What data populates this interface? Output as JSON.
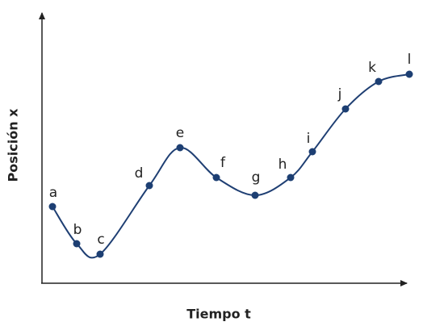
{
  "x_axis_label": "Tiempo t",
  "y_axis_label": "Posición x",
  "points": [
    {
      "label": "a"
    },
    {
      "label": "b"
    },
    {
      "label": "c"
    },
    {
      "label": "d"
    },
    {
      "label": "e"
    },
    {
      "label": "f"
    },
    {
      "label": "g"
    },
    {
      "label": "h"
    },
    {
      "label": "i"
    },
    {
      "label": "j"
    },
    {
      "label": "k"
    },
    {
      "label": "l"
    }
  ]
}
